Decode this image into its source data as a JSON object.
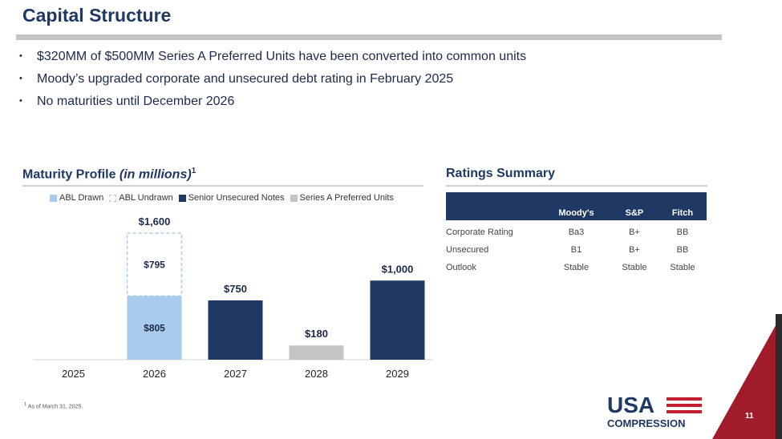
{
  "header": {
    "title": "Capital Structure"
  },
  "bullets": [
    "$320MM of $500MM Series A Preferred Units have been converted into common units",
    "Moody’s upgraded corporate and unsecured debt rating in February 2025",
    "No maturities until December 2026"
  ],
  "maturity": {
    "title": "Maturity Profile ",
    "title_italic": "(in millions)",
    "title_sup": "1"
  },
  "chart_data": {
    "type": "bar",
    "stacked": true,
    "categories": [
      "2025",
      "2026",
      "2027",
      "2028",
      "2029"
    ],
    "series": [
      {
        "name": "ABL Drawn",
        "values": [
          0,
          805,
          0,
          0,
          0
        ],
        "color": "#a9cbec"
      },
      {
        "name": "ABL Undrawn",
        "values": [
          0,
          795,
          0,
          0,
          0
        ],
        "color": "#a9cbec"
      },
      {
        "name": "Senior Unsecured Notes",
        "values": [
          0,
          0,
          750,
          0,
          1000
        ],
        "color": "#1f3864"
      },
      {
        "name": "Series A Preferred Units",
        "values": [
          0,
          0,
          0,
          180,
          0
        ],
        "color": "#c4c4c4"
      }
    ],
    "segment_labels": [
      {
        "category": "2026",
        "series": "ABL Drawn",
        "text": "$805"
      },
      {
        "category": "2026",
        "series": "ABL Undrawn",
        "text": "$795"
      }
    ],
    "total_labels": [
      "",
      "$1,600",
      "$750",
      "$180",
      "$1,000"
    ],
    "legend_position": "top",
    "grid": false,
    "ylim": [
      0,
      1600
    ]
  },
  "ratings": {
    "title": "Ratings Summary",
    "columns": [
      "",
      "Moody's",
      "S&P",
      "Fitch"
    ],
    "rows": [
      [
        "Corporate Rating",
        "Ba3",
        "B+",
        "BB"
      ],
      [
        "Unsecured",
        "B1",
        "B+",
        "BB"
      ],
      [
        "Outlook",
        "Stable",
        "Stable",
        "Stable"
      ]
    ]
  },
  "footnote": {
    "sup": "1",
    "text": " As of March 31, 2025."
  },
  "logo": {
    "line1": "USA",
    "line2": "COMPRESSION"
  },
  "page_number": "11",
  "colors": {
    "navy": "#1f3864",
    "light_blue": "#a9cbec",
    "gray": "#c4c4c4",
    "red": "#c0202e"
  }
}
